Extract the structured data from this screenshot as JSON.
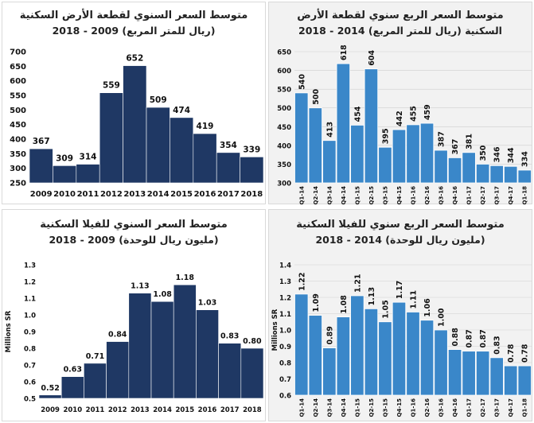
{
  "colors": {
    "annual_bar": "#1f3864",
    "quarter_bar": "#3a87c9"
  },
  "chart_data": [
    {
      "id": "land_annual",
      "type": "bar",
      "title_line1": "متوسط السعر السنوي لقطعة الأرض السكنية",
      "title_line2": "(ريال للمتر المربع) 2009 - 2018",
      "categories": [
        "2009",
        "2010",
        "2011",
        "2012",
        "2013",
        "2014",
        "2015",
        "2016",
        "2017",
        "2018"
      ],
      "values": [
        367,
        309,
        314,
        559,
        652,
        509,
        474,
        419,
        354,
        339
      ],
      "value_labels": [
        "367",
        "309",
        "314",
        "559",
        "652",
        "509",
        "474",
        "419",
        "354",
        "339"
      ],
      "ylim": [
        250,
        700
      ],
      "yticks": [
        "250",
        "300",
        "350",
        "400",
        "450",
        "500",
        "550",
        "600",
        "650",
        "700"
      ],
      "ylabel": "",
      "grid": false
    },
    {
      "id": "land_quarterly",
      "type": "bar",
      "title_line1": "متوسط السعر الربع سنوي لقطعة الأرض",
      "title_line2": "السكنية (ريال للمتر المربع) 2014 - 2018",
      "categories": [
        "Q1-14",
        "Q2-14",
        "Q3-14",
        "Q4-14",
        "Q1-15",
        "Q2-15",
        "Q3-15",
        "Q4-15",
        "Q1-16",
        "Q2-16",
        "Q3-16",
        "Q4-16",
        "Q1-17",
        "Q2-17",
        "Q3-17",
        "Q4-17",
        "Q1-18"
      ],
      "values": [
        540,
        500,
        413,
        618,
        454,
        604,
        395,
        442,
        455,
        459,
        387,
        367,
        381,
        350,
        346,
        344,
        334
      ],
      "value_labels": [
        "540",
        "500",
        "413",
        "618",
        "454",
        "604",
        "395",
        "442",
        "455",
        "459",
        "387",
        "367",
        "381",
        "350",
        "346",
        "344",
        "334"
      ],
      "ylim": [
        300,
        650
      ],
      "yticks": [
        "300",
        "350",
        "400",
        "450",
        "500",
        "550",
        "600",
        "650"
      ],
      "ylabel": "",
      "grid": true
    },
    {
      "id": "villa_annual",
      "type": "bar",
      "title_line1": "متوسط السعر السنوي للفيلا السكنية",
      "title_line2": "(مليون ريال للوحدة) 2009 - 2018",
      "categories": [
        "2009",
        "2010",
        "2011",
        "2012",
        "2013",
        "2014",
        "2015",
        "2016",
        "2017",
        "2018"
      ],
      "values": [
        0.52,
        0.63,
        0.71,
        0.84,
        1.13,
        1.08,
        1.18,
        1.03,
        0.83,
        0.8
      ],
      "value_labels": [
        "0.52",
        "0.63",
        "0.71",
        "0.84",
        "1.13",
        "1.08",
        "1.18",
        "1.03",
        "0.83",
        "0.80"
      ],
      "ylim": [
        0.5,
        1.3
      ],
      "yticks": [
        "0.5",
        "0.6",
        "0.7",
        "0.8",
        "0.9",
        "1.0",
        "1.1",
        "1.2",
        "1.3"
      ],
      "ylabel": "Millions SR",
      "grid": false
    },
    {
      "id": "villa_quarterly",
      "type": "bar",
      "title_line1": "متوسط السعر الربع سنوي للفيلا السكنية",
      "title_line2": "(مليون ريال للوحدة) 2014 - 2018",
      "categories": [
        "Q1-14",
        "Q2-14",
        "Q3-14",
        "Q4-14",
        "Q1-15",
        "Q2-15",
        "Q3-15",
        "Q4-15",
        "Q1-16",
        "Q2-16",
        "Q3-16",
        "Q4-16",
        "Q1-17",
        "Q2-17",
        "Q3-17",
        "Q4-17",
        "Q1-18"
      ],
      "values": [
        1.22,
        1.09,
        0.89,
        1.08,
        1.21,
        1.13,
        1.05,
        1.17,
        1.11,
        1.06,
        1.0,
        0.88,
        0.87,
        0.87,
        0.83,
        0.78,
        0.78
      ],
      "value_labels": [
        "1.22",
        "1.09",
        "0.89",
        "1.08",
        "1.21",
        "1.13",
        "1.05",
        "1.17",
        "1.11",
        "1.06",
        "1.00",
        "0.88",
        "0.87",
        "0.87",
        "0.83",
        "0.78",
        "0.78"
      ],
      "ylim": [
        0.6,
        1.4
      ],
      "yticks": [
        "0.6",
        "0.7",
        "0.8",
        "0.9",
        "1.0",
        "1.1",
        "1.2",
        "1.3",
        "1.4"
      ],
      "ylabel": "Millions SR",
      "grid": true
    }
  ]
}
